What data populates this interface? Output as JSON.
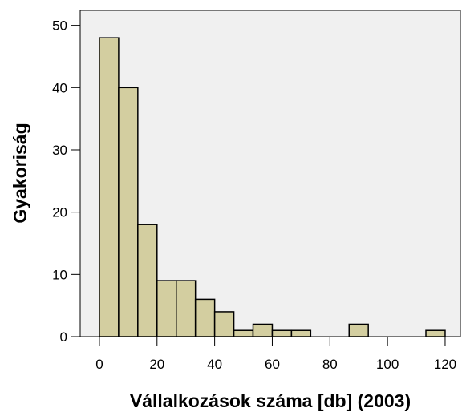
{
  "chart_data": {
    "type": "histogram",
    "x_label": "Vállalkozások száma [db] (2003)",
    "y_label": "Gyakoriság",
    "bins": [
      0,
      6.67,
      13.33,
      20,
      26.67,
      33.33,
      40,
      46.67,
      53.33,
      60,
      66.67,
      73.33,
      80,
      86.67,
      93.33,
      100,
      106.67,
      113.33,
      120
    ],
    "values": [
      48,
      40,
      18,
      9,
      9,
      6,
      4,
      1,
      2,
      1,
      1,
      0,
      0,
      2,
      0,
      0,
      0,
      1
    ],
    "color": "#d3cea0",
    "xlim": [
      -6.67,
      125.3
    ],
    "xticks": [
      0,
      20,
      40,
      60,
      80,
      100,
      120
    ],
    "ylim": [
      0,
      52.4
    ],
    "yticks": [
      0,
      10,
      20,
      30,
      40,
      50
    ]
  }
}
